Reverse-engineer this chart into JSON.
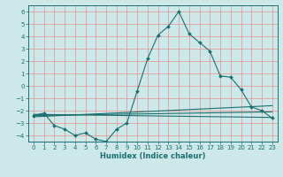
{
  "xlabel": "Humidex (Indice chaleur)",
  "background_color": "#cce8e8",
  "grid_color": "#e89090",
  "line_color": "#1a7070",
  "xlim": [
    -0.5,
    23.5
  ],
  "ylim": [
    -4.5,
    6.5
  ],
  "xticks": [
    0,
    1,
    2,
    3,
    4,
    5,
    6,
    7,
    8,
    9,
    10,
    11,
    12,
    13,
    14,
    15,
    16,
    17,
    18,
    19,
    20,
    21,
    22,
    23
  ],
  "yticks": [
    -4,
    -3,
    -2,
    -1,
    0,
    1,
    2,
    3,
    4,
    5,
    6
  ],
  "series": [
    {
      "x": [
        0,
        1,
        2,
        3,
        4,
        5,
        6,
        7,
        8,
        9,
        10,
        11,
        12,
        13,
        14,
        15,
        16,
        17,
        18,
        19,
        20,
        21,
        22,
        23
      ],
      "y": [
        -2.4,
        -2.2,
        -3.2,
        -3.5,
        -4.0,
        -3.8,
        -4.3,
        -4.5,
        -3.5,
        -3.0,
        -0.4,
        2.2,
        4.1,
        4.8,
        6.0,
        4.2,
        3.5,
        2.8,
        0.8,
        0.7,
        -0.3,
        -1.7,
        -2.0,
        -2.6
      ],
      "has_markers": true
    },
    {
      "x": [
        0,
        23
      ],
      "y": [
        -2.3,
        -2.55
      ],
      "has_markers": false
    },
    {
      "x": [
        0,
        23
      ],
      "y": [
        -2.4,
        -2.1
      ],
      "has_markers": false
    },
    {
      "x": [
        0,
        23
      ],
      "y": [
        -2.5,
        -1.6
      ],
      "has_markers": false
    }
  ]
}
